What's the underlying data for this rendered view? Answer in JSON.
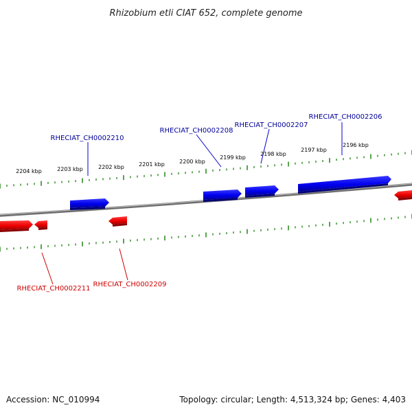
{
  "title": "Rhizobium etli CIAT 652, complete genome",
  "footer": {
    "accession": "Accession: NC_010994",
    "summary": "Topology: circular; Length: 4,513,324 bp; Genes: 4,403"
  },
  "colors": {
    "forward": "#0000ee",
    "reverse": "#ee0000",
    "forward_label": "#000099",
    "reverse_label": "#cc0000",
    "tick": "#2e8b22",
    "backbone": "#888888"
  },
  "kbp_ticks": [
    "2196 kbp",
    "2197 kbp",
    "2198 kbp",
    "2199 kbp",
    "2200 kbp",
    "2201 kbp",
    "2202 kbp",
    "2203 kbp",
    "2204 kbp"
  ],
  "genes": [
    {
      "name": "RHECIAT_CH0002206",
      "strand": "forward"
    },
    {
      "name": "RHECIAT_CH0002207",
      "strand": "forward"
    },
    {
      "name": "RHECIAT_CH0002208",
      "strand": "forward"
    },
    {
      "name": "RHECIAT_CH0002210",
      "strand": "forward"
    },
    {
      "name": "RHECIAT_CH0002209",
      "strand": "reverse"
    },
    {
      "name": "RHECIAT_CH0002211",
      "strand": "reverse"
    }
  ]
}
